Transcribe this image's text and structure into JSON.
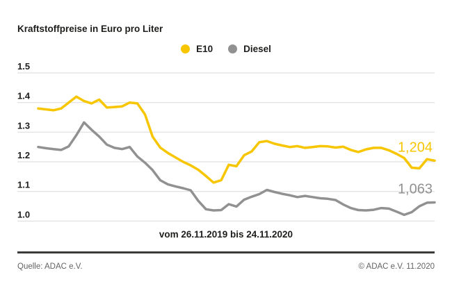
{
  "chart_data": {
    "type": "line",
    "title": "Kraftstoffpreise in Euro pro Liter",
    "x_caption": "vom 26.11.2019 bis 24.11.2020",
    "xlabel": "",
    "ylabel": "",
    "ylim": [
      1.0,
      1.5
    ],
    "y_ticks": [
      "1.5",
      "1.4",
      "1.3",
      "1.2",
      "1.1",
      "1.0"
    ],
    "grid": "horizontal",
    "legend_position": "top-center",
    "x_points": 53,
    "series": [
      {
        "name": "E10",
        "color": "#f7c600",
        "end_label": "1,204",
        "final_value": 1.204,
        "values": [
          1.38,
          1.377,
          1.374,
          1.38,
          1.4,
          1.42,
          1.405,
          1.397,
          1.41,
          1.383,
          1.385,
          1.387,
          1.4,
          1.397,
          1.36,
          1.285,
          1.248,
          1.23,
          1.215,
          1.2,
          1.188,
          1.173,
          1.152,
          1.13,
          1.138,
          1.19,
          1.185,
          1.222,
          1.235,
          1.266,
          1.27,
          1.261,
          1.255,
          1.25,
          1.253,
          1.247,
          1.25,
          1.253,
          1.252,
          1.248,
          1.251,
          1.24,
          1.233,
          1.242,
          1.247,
          1.247,
          1.239,
          1.227,
          1.213,
          1.18,
          1.178,
          1.209,
          1.204
        ]
      },
      {
        "name": "Diesel",
        "color": "#919191",
        "end_label": "1,063",
        "final_value": 1.063,
        "values": [
          1.25,
          1.246,
          1.243,
          1.24,
          1.252,
          1.29,
          1.333,
          1.308,
          1.285,
          1.258,
          1.247,
          1.243,
          1.25,
          1.218,
          1.197,
          1.172,
          1.138,
          1.124,
          1.117,
          1.111,
          1.104,
          1.068,
          1.04,
          1.036,
          1.037,
          1.057,
          1.049,
          1.072,
          1.082,
          1.091,
          1.105,
          1.098,
          1.092,
          1.087,
          1.081,
          1.085,
          1.081,
          1.077,
          1.075,
          1.071,
          1.056,
          1.044,
          1.037,
          1.036,
          1.038,
          1.044,
          1.042,
          1.032,
          1.021,
          1.03,
          1.05,
          1.062,
          1.063
        ]
      }
    ]
  },
  "footer": {
    "source": "Quelle: ADAC e.V.",
    "copyright": "© ADAC e.V. 11.2020"
  },
  "colors": {
    "text": "#1d1d1b",
    "grid": "#d9d9d9",
    "divider": "#3b3b3a",
    "footer_text": "#636362",
    "background": "#ffffff"
  }
}
